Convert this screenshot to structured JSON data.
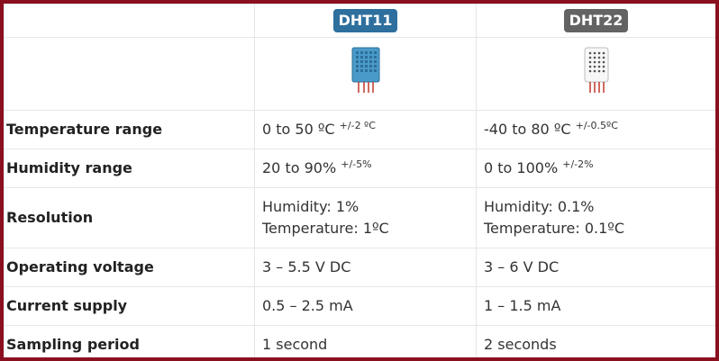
{
  "table": {
    "columns": [
      {
        "label": "DHT11",
        "color": "#2e6f9e",
        "image": "dht11-sensor-icon"
      },
      {
        "label": "DHT22",
        "color": "#636363",
        "image": "dht22-sensor-icon"
      }
    ],
    "rows": [
      {
        "label": "Temperature range",
        "dht11": "0 to 50 ºC",
        "dht11_sup": "+/-2 ºC",
        "dht22": "-40 to 80 ºC",
        "dht22_sup": "+/-0.5ºC"
      },
      {
        "label": "Humidity range",
        "dht11": "20 to 90%",
        "dht11_sup": "+/-5%",
        "dht22": "0 to 100%",
        "dht22_sup": "+/-2%"
      },
      {
        "label": "Resolution",
        "dht11_line1": "Humidity: 1%",
        "dht11_line2": "Temperature: 1ºC",
        "dht22_line1": "Humidity: 0.1%",
        "dht22_line2": "Temperature: 0.1ºC"
      },
      {
        "label": "Operating voltage",
        "dht11": "3 – 5.5 V DC",
        "dht22": "3 – 6 V DC"
      },
      {
        "label": "Current supply",
        "dht11": "0.5 – 2.5 mA",
        "dht22": "1 – 1.5 mA"
      },
      {
        "label": "Sampling period",
        "dht11": "1 second",
        "dht22": "2 seconds"
      }
    ]
  },
  "colors": {
    "border": "#8a0f1f",
    "dht11_blue": "#2e6f9e",
    "dht22_gray": "#636363"
  }
}
